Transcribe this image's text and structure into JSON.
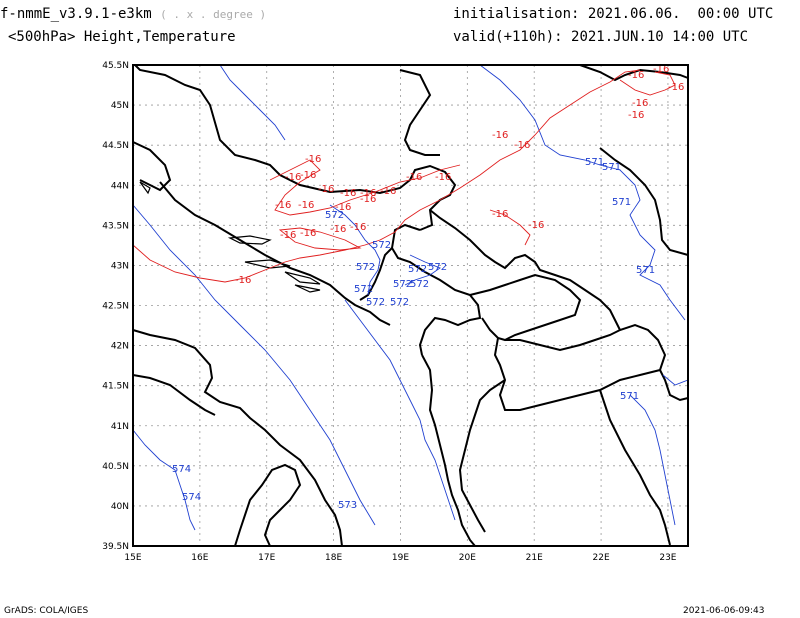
{
  "header": {
    "model": "f-nmmE_v3.9.1-e3km",
    "units": "( . x . degree )",
    "init_label": "initialisation:",
    "init_value": "2021.06.06.  00:00 UTC",
    "field": "<500hPa> Height,Temperature",
    "valid_label": "valid(+110h):",
    "valid_value": "2021.JUN.10 14:00 UTC"
  },
  "footer": {
    "left": "GrADS: COLA/IGES",
    "right": "2021-06-06-09:43"
  },
  "map": {
    "lon_range": [
      15,
      23.3
    ],
    "lat_range": [
      39.5,
      45.5
    ],
    "lon_ticks": [
      "15E",
      "16E",
      "17E",
      "18E",
      "19E",
      "20E",
      "21E",
      "22E",
      "23E"
    ],
    "lat_ticks": [
      "45.5N",
      "45N",
      "44.5N",
      "44N",
      "43.5N",
      "43N",
      "42.5N",
      "42N",
      "41.5N",
      "41N",
      "40.5N",
      "40N",
      "39.5N"
    ],
    "grid": true,
    "colors": {
      "temperature": "#e02020",
      "height": "#2040d0",
      "borders": "#000000",
      "grid": "#999999"
    },
    "temperature_labels": [
      "-16",
      "-16",
      "-16",
      "-16",
      "-16",
      "-16",
      "-16",
      "-16",
      "-16",
      "-16",
      "-16",
      "-16",
      "-16",
      "-16",
      "-16",
      "-16",
      "-16",
      "-16",
      "-16",
      "-16",
      "-16",
      "-16",
      "-16",
      "-16",
      "-16",
      "-16",
      "-16"
    ],
    "height_labels": [
      "571",
      "571",
      "571",
      "571",
      "571",
      "572",
      "572",
      "572",
      "572",
      "572",
      "572",
      "572",
      "572",
      "572",
      "572",
      "574",
      "574",
      "573"
    ]
  }
}
